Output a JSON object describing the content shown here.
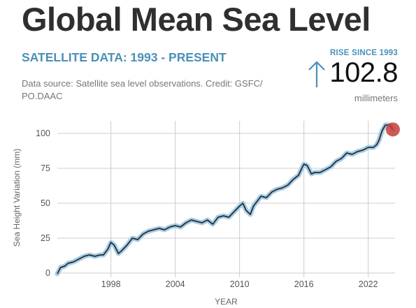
{
  "header": {
    "title": "Global Mean Sea Level",
    "subtitle": "SATELLITE DATA: 1993 - PRESENT",
    "source": "Data source: Satellite sea level observations. Credit: GSFC/ PO.DAAC"
  },
  "kpi": {
    "label": "RISE SINCE 1993",
    "value": "102.8",
    "unit": "millimeters"
  },
  "colors": {
    "line": "#1f2d3a",
    "band": "#a9cde4",
    "grid": "#cccccc",
    "marker": "#c83c3c",
    "accent": "#4a90b8"
  },
  "chart_data": {
    "type": "line",
    "xlabel": "YEAR",
    "ylabel": "Sea Height Variation (mm)",
    "xlim": [
      1993,
      2024.5
    ],
    "ylim": [
      0,
      108
    ],
    "x_ticks": [
      1998,
      2004,
      2010,
      2016,
      2022
    ],
    "y_ticks": [
      0,
      25,
      50,
      75,
      100
    ],
    "grid": true,
    "series": [
      {
        "x": [
          1993.0,
          1993.3,
          1993.7,
          1994.0,
          1994.5,
          1995.0,
          1995.5,
          1996.0,
          1996.5,
          1997.0,
          1997.3,
          1997.7,
          1998.0,
          1998.3,
          1998.7,
          1999.0,
          1999.5,
          2000.0,
          2000.5,
          2001.0,
          2001.5,
          2002.0,
          2002.5,
          2003.0,
          2003.5,
          2004.0,
          2004.5,
          2005.0,
          2005.5,
          2006.0,
          2006.5,
          2007.0,
          2007.5,
          2008.0,
          2008.5,
          2009.0,
          2009.5,
          2010.0,
          2010.3,
          2010.6,
          2011.0,
          2011.3,
          2011.7,
          2012.0,
          2012.5,
          2013.0,
          2013.5,
          2014.0,
          2014.5,
          2015.0,
          2015.5,
          2015.8,
          2016.0,
          2016.3,
          2016.7,
          2017.0,
          2017.5,
          2018.0,
          2018.5,
          2019.0,
          2019.5,
          2020.0,
          2020.5,
          2021.0,
          2021.5,
          2022.0,
          2022.5,
          2022.8,
          2023.0,
          2023.3,
          2023.6,
          2024.0,
          2024.3
        ],
        "values": [
          -0.5,
          4,
          5,
          7,
          8,
          10,
          12,
          13,
          12,
          13,
          13,
          17,
          22,
          20,
          14,
          16,
          20,
          25,
          24,
          28,
          30,
          31,
          32,
          31,
          33,
          34,
          33,
          36,
          38,
          37,
          36,
          38,
          35,
          40,
          41,
          40,
          44,
          48,
          50,
          45,
          42,
          48,
          52,
          55,
          54,
          58,
          60,
          61,
          63,
          67,
          70,
          75,
          78,
          77,
          71,
          72,
          72,
          74,
          76,
          80,
          82,
          86,
          85,
          87,
          88,
          90,
          90,
          92,
          95,
          102,
          106,
          106,
          102.8
        ]
      }
    ]
  }
}
